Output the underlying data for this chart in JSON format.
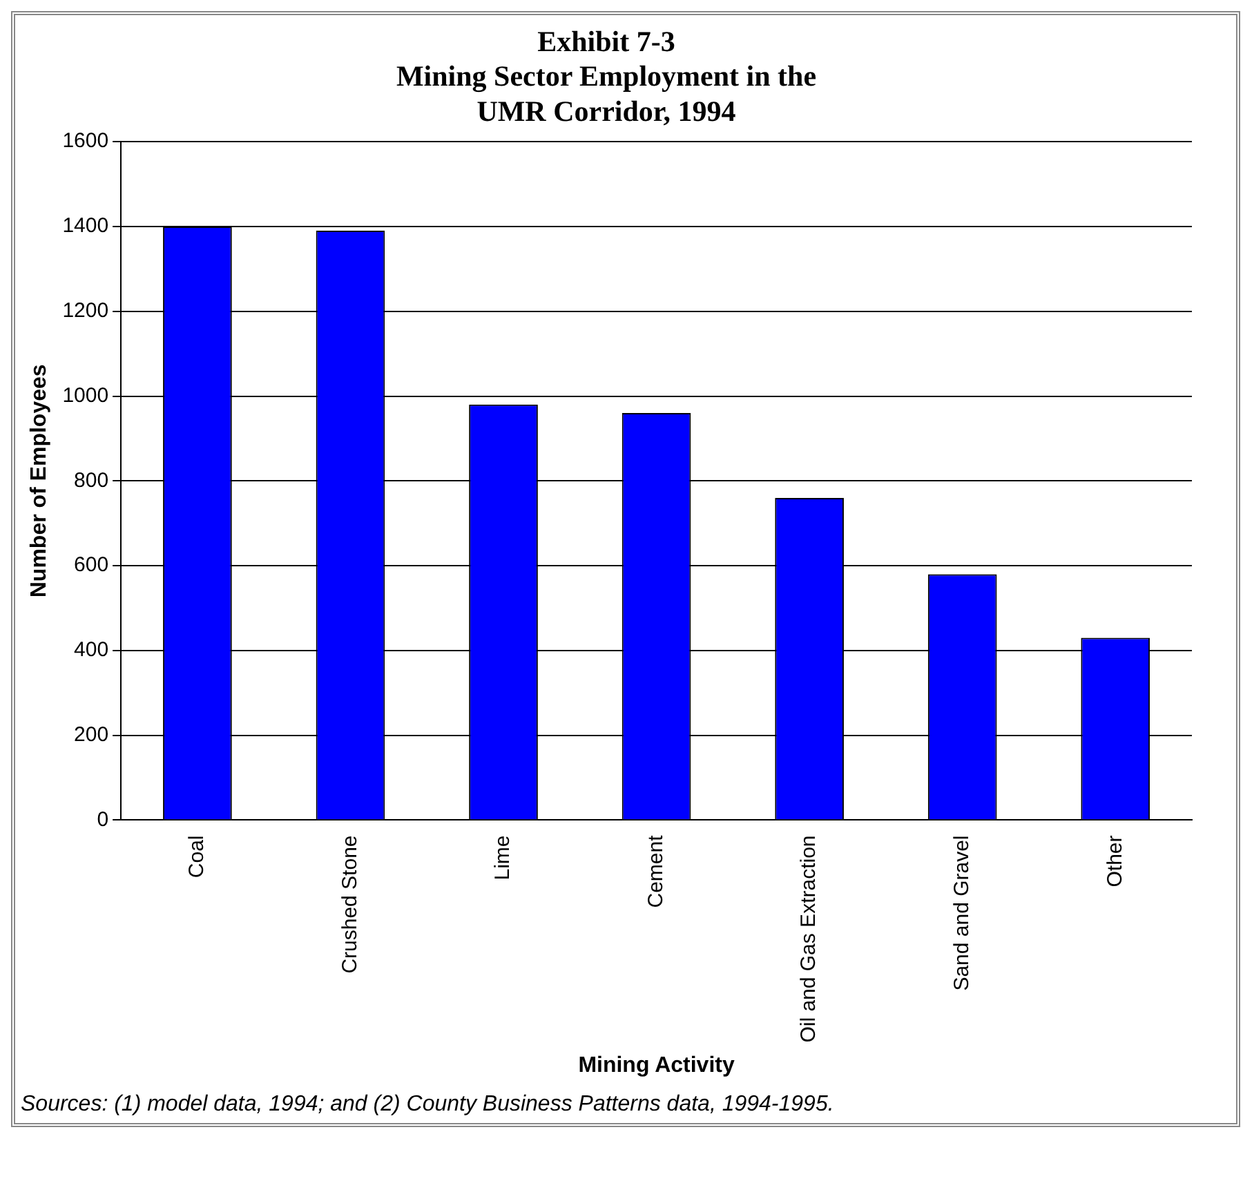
{
  "chart_data": {
    "type": "bar",
    "title": "Exhibit 7-3\nMining Sector Employment in the\nUMR Corridor, 1994",
    "xlabel": "Mining Activity",
    "ylabel": "Number of Employees",
    "categories": [
      "Coal",
      "Crushed Stone",
      "Lime",
      "Cement",
      "Oil and Gas Extraction",
      "Sand and Gravel",
      "Other"
    ],
    "values": [
      1400,
      1390,
      980,
      960,
      760,
      580,
      430
    ],
    "color": "#0000ff",
    "ylim": [
      0,
      1600
    ],
    "yticks": [
      0,
      200,
      400,
      600,
      800,
      1000,
      1200,
      1400,
      1600
    ],
    "grid": "y",
    "annotations": [
      "Sources: (1) model data, 1994; and (2) County Business Patterns data, 1994-1995."
    ]
  }
}
